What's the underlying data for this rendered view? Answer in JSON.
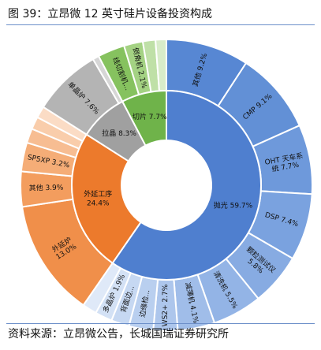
{
  "figure_title": "图 39：立昂微 12 英寸硅片设备投资构成",
  "source_note": "资料来源：立昂微公告，长城国瑞证券研究所",
  "colors": {
    "rule": "#6c8fc9",
    "slice_border": "#ffffff"
  },
  "chart_data": {
    "type": "pie",
    "variant": "two-level donut (sunburst)",
    "title": "",
    "inner": [
      {
        "label": "抛光 59.7%",
        "value": 59.7,
        "color": "#4f7fcf",
        "text_color": "#111111"
      },
      {
        "label": "外延工序\n24.4%",
        "value": 24.4,
        "color": "#ec7a2c",
        "text_color": "#111111"
      },
      {
        "label": "拉晶 8.3%",
        "value": 8.3,
        "color": "#a0a0a0",
        "text_color": "#111111"
      },
      {
        "label": "切片 7.7%",
        "value": 7.7,
        "color": "#6fb34a",
        "text_color": "#111111"
      }
    ],
    "outer": [
      {
        "label": "其他 9.2%",
        "value": 9.2,
        "parent": "抛光",
        "color": "#5787d3"
      },
      {
        "label": "CMP 9.1%",
        "value": 9.1,
        "parent": "抛光",
        "color": "#6290d6"
      },
      {
        "label": "OHT 天车系\n统 7.7%",
        "value": 7.7,
        "parent": "抛光",
        "color": "#6e99db"
      },
      {
        "label": "DSP 7.4%",
        "value": 7.4,
        "parent": "抛光",
        "color": "#7aa2df"
      },
      {
        "label": "颗粒测试仪\n5.8%",
        "value": 5.8,
        "parent": "抛光",
        "color": "#87abe2"
      },
      {
        "label": "清洗机 5.5%",
        "value": 5.5,
        "parent": "抛光",
        "color": "#93b4e6"
      },
      {
        "label": "减薄机 4.1%",
        "value": 4.1,
        "parent": "抛光",
        "color": "#a0bde9"
      },
      {
        "label": "WS2+ 2.7%",
        "value": 2.7,
        "parent": "抛光",
        "color": "#adc6ec"
      },
      {
        "label": "边缘检...",
        "value": 2.7,
        "parent": "抛光",
        "color": "#b9cfef"
      },
      {
        "label": "背面边...",
        "value": 2.0,
        "parent": "抛光",
        "color": "#c6d8f2"
      },
      {
        "label": "多晶炉 1.9%",
        "value": 1.9,
        "parent": "抛光",
        "color": "#d3e1f5"
      },
      {
        "label": "",
        "value": 1.6,
        "parent": "抛光",
        "color": "#dfe9f8"
      },
      {
        "label": "外延炉\n13.0%",
        "value": 13.0,
        "parent": "外延工序",
        "color": "#f08f4a"
      },
      {
        "label": "其他 3.9%",
        "value": 3.9,
        "parent": "外延工序",
        "color": "#f39d5e"
      },
      {
        "label": "SP5XP 3.2%",
        "value": 3.2,
        "parent": "外延工序",
        "color": "#f5ad77"
      },
      {
        "label": "",
        "value": 1.6,
        "parent": "外延工序",
        "color": "#f7bd92"
      },
      {
        "label": "",
        "value": 1.4,
        "parent": "外延工序",
        "color": "#f9cdab"
      },
      {
        "label": "",
        "value": 1.3,
        "parent": "外延工序",
        "color": "#fbdcc5"
      },
      {
        "label": "单晶炉 7.6%",
        "value": 7.6,
        "parent": "拉晶",
        "color": "#b4b4b4"
      },
      {
        "label": "",
        "value": 0.7,
        "parent": "拉晶",
        "color": "#d6d6d6"
      },
      {
        "label": "线切割机...",
        "value": 3.0,
        "parent": "切片",
        "color": "#86c25f"
      },
      {
        "label": "倒角机 2.1%",
        "value": 2.1,
        "parent": "切片",
        "color": "#a4d283"
      },
      {
        "label": "",
        "value": 1.4,
        "parent": "切片",
        "color": "#bfe0a7"
      },
      {
        "label": "",
        "value": 1.2,
        "parent": "切片",
        "color": "#d8ecc9"
      }
    ]
  }
}
